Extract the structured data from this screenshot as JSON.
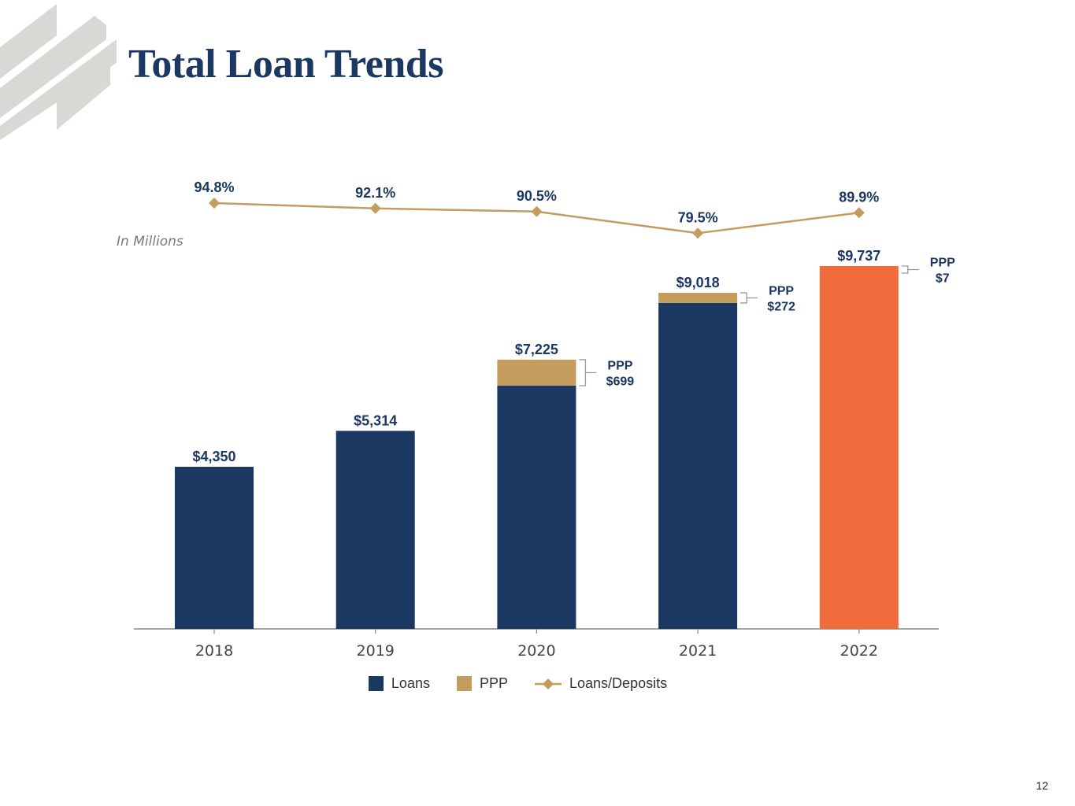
{
  "title": "Total Loan Trends",
  "unit_note": "In Millions",
  "page_number": "12",
  "colors": {
    "loans": "#1b3862",
    "ppp": "#c39c5e",
    "highlight": "#f06c3d",
    "line": "#c39c5e",
    "axis": "#888888",
    "label": "#1b3862"
  },
  "legend": {
    "loans": "Loans",
    "ppp": "PPP",
    "ratio": "Loans/Deposits"
  },
  "chart_data": {
    "type": "bar",
    "stacked": true,
    "categories": [
      "2018",
      "2019",
      "2020",
      "2021",
      "2022"
    ],
    "series": [
      {
        "name": "Loans",
        "values": [
          4350,
          5314,
          6526,
          8746,
          9730
        ]
      },
      {
        "name": "PPP",
        "values": [
          0,
          0,
          699,
          272,
          7
        ]
      }
    ],
    "totals": [
      4350,
      5314,
      7225,
      9018,
      9737
    ],
    "total_labels": [
      "$4,350",
      "$5,314",
      "$7,225",
      "$9,018",
      "$9,737"
    ],
    "ppp_callouts": [
      {
        "index": 2,
        "line1": "PPP",
        "line2": "$699"
      },
      {
        "index": 3,
        "line1": "PPP",
        "line2": "$272"
      },
      {
        "index": 4,
        "line1": "PPP",
        "line2": "$7"
      }
    ],
    "highlight_index": 4,
    "line_series": {
      "name": "Loans/Deposits",
      "values": [
        94.8,
        92.1,
        90.5,
        79.5,
        89.9
      ],
      "labels": [
        "94.8%",
        "92.1%",
        "90.5%",
        "79.5%",
        "89.9%"
      ]
    },
    "ylim": [
      0,
      9737
    ],
    "xlabel": "",
    "ylabel": "In Millions",
    "legend_position": "bottom-center"
  }
}
